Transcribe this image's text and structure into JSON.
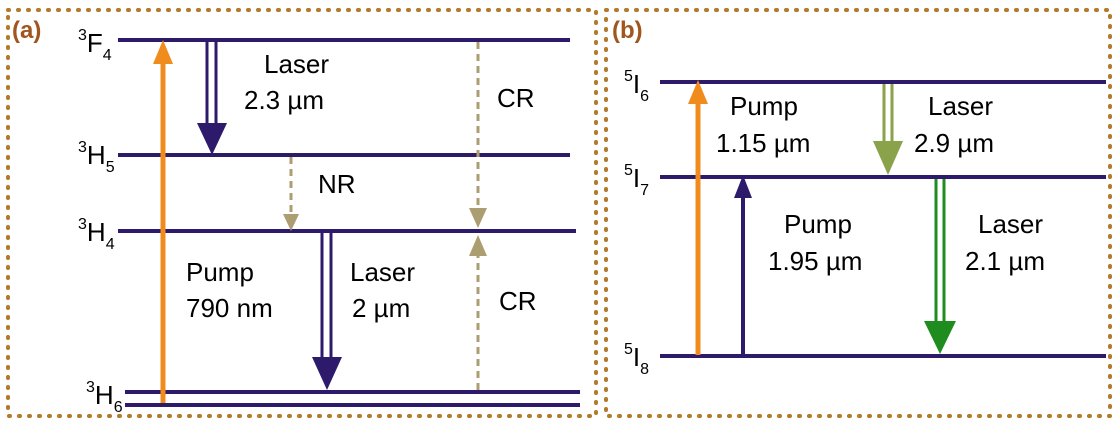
{
  "colors": {
    "frame": "#b27a2a",
    "level": "#2e1a6b",
    "pump_orange": "#f08c1e",
    "pump_purple": "#2e1a6b",
    "laser_tm": "#2e1a6b",
    "laser_olive": "#8aa24a",
    "laser_green": "#1e8c1e",
    "dashed": "#ad9e72",
    "panel_tag": "#a0561e"
  },
  "panel_a": {
    "tag": "(a)",
    "levels": [
      {
        "base": "F",
        "sup": "3",
        "sub": "4"
      },
      {
        "base": "H",
        "sup": "3",
        "sub": "5"
      },
      {
        "base": "H",
        "sup": "3",
        "sub": "4"
      },
      {
        "base": "H",
        "sup": "3",
        "sub": "6"
      }
    ],
    "pump": {
      "line1": "Pump",
      "line2": "790 nm"
    },
    "laser_top": {
      "line1": "Laser",
      "line2": "2.3 µm"
    },
    "laser_bottom": {
      "line1": "Laser",
      "line2": "2 µm"
    },
    "nr": "NR",
    "cr_top": "CR",
    "cr_bottom": "CR"
  },
  "panel_b": {
    "tag": "(b)",
    "levels": [
      {
        "base": "I",
        "sup": "5",
        "sub": "6"
      },
      {
        "base": "I",
        "sup": "5",
        "sub": "7"
      },
      {
        "base": "I",
        "sup": "5",
        "sub": "8"
      }
    ],
    "pump_top": {
      "line1": "Pump",
      "line2": "1.15 µm"
    },
    "pump_bottom": {
      "line1": "Pump",
      "line2": "1.95 µm"
    },
    "laser_top": {
      "line1": "Laser",
      "line2": "2.9 µm"
    },
    "laser_bottom": {
      "line1": "Laser",
      "line2": "2.1 µm"
    }
  }
}
